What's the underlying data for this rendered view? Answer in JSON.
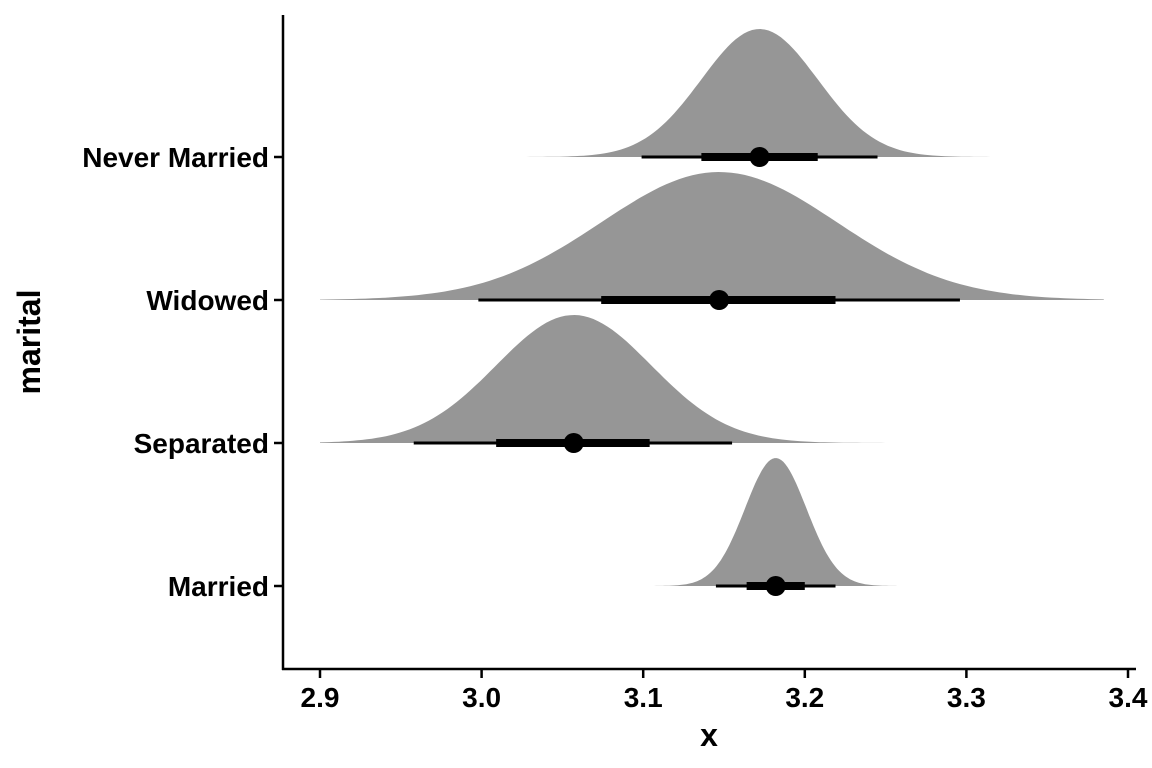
{
  "chart_data": {
    "type": "halfeye",
    "xlabel": "x",
    "ylabel": "marital",
    "xlim": [
      2.877,
      3.4
    ],
    "x_ticks": [
      "2.9",
      "3.0",
      "3.1",
      "3.2",
      "3.3",
      "3.4"
    ],
    "x_tick_values": [
      2.9,
      3.0,
      3.1,
      3.2,
      3.3,
      3.4
    ],
    "categories": [
      "Married",
      "Separated",
      "Widowed",
      "Never Married"
    ],
    "series": [
      {
        "category": "Married",
        "point": 3.182,
        "interval_66": [
          3.164,
          3.2
        ],
        "interval_95": [
          3.145,
          3.219
        ],
        "density_range": [
          3.1,
          3.26
        ],
        "density_sd": 0.019
      },
      {
        "category": "Separated",
        "point": 3.057,
        "interval_66": [
          3.009,
          3.104
        ],
        "interval_95": [
          2.958,
          3.155
        ],
        "density_range": [
          2.9,
          3.25
        ],
        "density_sd": 0.048
      },
      {
        "category": "Widowed",
        "point": 3.147,
        "interval_66": [
          3.074,
          3.219
        ],
        "interval_95": [
          2.998,
          3.296
        ],
        "density_range": [
          2.9,
          3.385
        ],
        "density_sd": 0.073
      },
      {
        "category": "Never Married",
        "point": 3.172,
        "interval_66": [
          3.136,
          3.208
        ],
        "interval_95": [
          3.099,
          3.245
        ],
        "density_range": [
          3.02,
          3.325
        ],
        "density_sd": 0.036
      }
    ],
    "colors": {
      "density": "#969696",
      "interval": "#000000",
      "axis": "#000000"
    },
    "grid": false,
    "legend": "none"
  }
}
